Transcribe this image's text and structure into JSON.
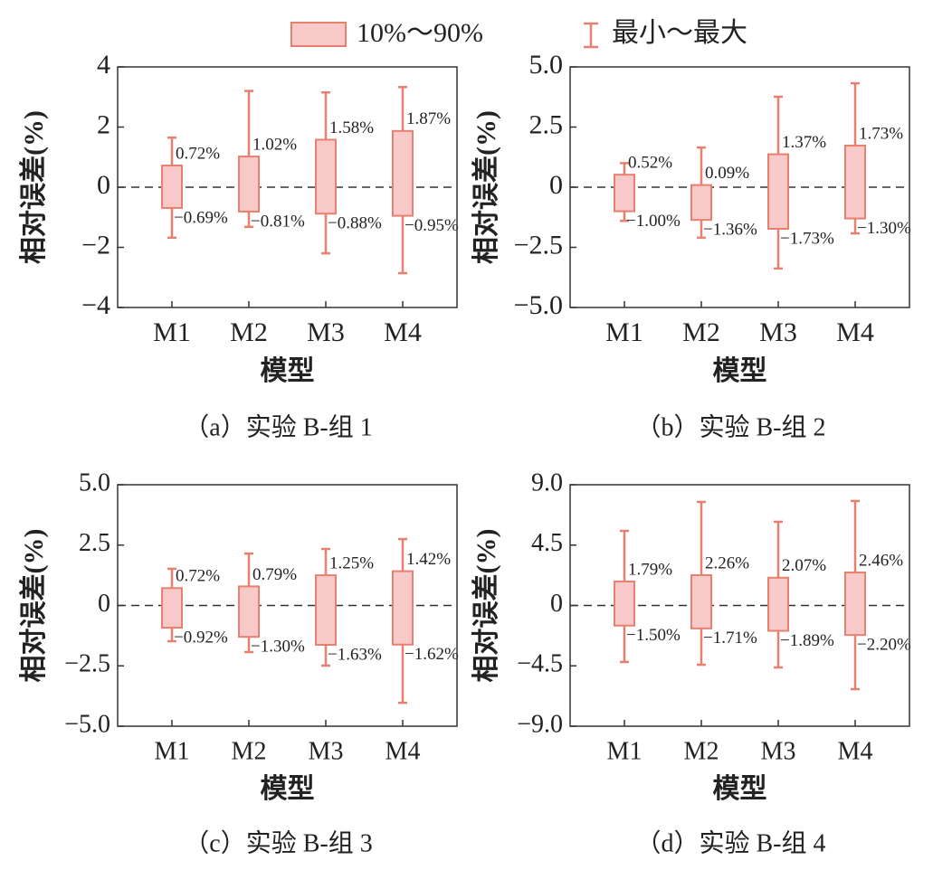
{
  "legend": {
    "box_label": "10%～90%",
    "whisker_label": "最小～最大",
    "box_fill": "#f7c9c9",
    "color": "#e8806f"
  },
  "chart_data": [
    {
      "type": "box",
      "caption": "（a）实验 B-组 1",
      "xlabel": "模型",
      "ylabel": "相对误差(%)",
      "categories": [
        "M1",
        "M2",
        "M3",
        "M4"
      ],
      "q90": {
        "values": [
          0.72,
          1.02,
          1.58,
          1.87
        ],
        "value_labels": [
          "0.72%",
          "1.02%",
          "1.58%",
          "1.87%"
        ]
      },
      "q10": {
        "values": [
          -0.69,
          -0.81,
          -0.88,
          -0.95
        ],
        "value_labels": [
          "−0.69%",
          "−0.81%",
          "−0.88%",
          "−0.95%"
        ]
      },
      "max": [
        1.65,
        3.2,
        3.15,
        3.33
      ],
      "min": [
        -1.68,
        -1.32,
        -2.2,
        -2.86
      ],
      "ylim": [
        -4,
        4
      ],
      "yticks": [
        {
          "value": -4,
          "label": "−4"
        },
        {
          "value": -2,
          "label": "−2"
        },
        0,
        2,
        4
      ],
      "hline": 0
    },
    {
      "type": "box",
      "caption": "（b）实验 B-组 2",
      "xlabel": "模型",
      "ylabel": "相对误差(%)",
      "categories": [
        "M1",
        "M2",
        "M3",
        "M4"
      ],
      "q90": {
        "values": [
          0.52,
          0.09,
          1.37,
          1.73
        ],
        "value_labels": [
          "0.52%",
          "0.09%",
          "1.37%",
          "1.73%"
        ]
      },
      "q10": {
        "values": [
          -1,
          -1.36,
          -1.73,
          -1.3
        ],
        "value_labels": [
          "−1.00%",
          "−1.36%",
          "−1.73%",
          "−1.30%"
        ]
      },
      "max": [
        1.0,
        1.65,
        3.76,
        4.32
      ],
      "min": [
        -1.4,
        -2.1,
        -3.38,
        -1.92
      ],
      "ylim": [
        -5,
        5
      ],
      "yticks": [
        {
          "value": -5,
          "label": "−5.0"
        },
        {
          "value": -2.5,
          "label": "−2.5"
        },
        0,
        2.5,
        {
          "value": 5,
          "label": "5.0"
        }
      ],
      "hline": 0
    },
    {
      "type": "box",
      "caption": "（c）实验 B-组 3",
      "xlabel": "模型",
      "ylabel": "相对误差(%)",
      "categories": [
        "M1",
        "M2",
        "M3",
        "M4"
      ],
      "q90": {
        "values": [
          0.72,
          0.79,
          1.25,
          1.42
        ],
        "value_labels": [
          "0.72%",
          "0.79%",
          "1.25%",
          "1.42%"
        ]
      },
      "q10": {
        "values": [
          -0.92,
          -1.3,
          -1.63,
          -1.62
        ],
        "value_labels": [
          "−0.92%",
          "−1.30%",
          "−1.63%",
          "−1.62%"
        ]
      },
      "max": [
        1.52,
        2.15,
        2.34,
        2.75
      ],
      "min": [
        -1.48,
        -1.93,
        -2.49,
        -4.03
      ],
      "ylim": [
        -5,
        5
      ],
      "yticks": [
        {
          "value": -5,
          "label": "−5.0"
        },
        {
          "value": -2.5,
          "label": "−2.5"
        },
        0,
        2.5,
        {
          "value": 5,
          "label": "5.0"
        }
      ],
      "hline": 0
    },
    {
      "type": "box",
      "caption": "（d）实验 B-组 4",
      "xlabel": "模型",
      "ylabel": "相对误差(%)",
      "categories": [
        "M1",
        "M2",
        "M3",
        "M4"
      ],
      "q90": {
        "values": [
          1.79,
          2.26,
          2.07,
          2.46
        ],
        "value_labels": [
          "1.79%",
          "2.26%",
          "2.07%",
          "2.46%"
        ]
      },
      "q10": {
        "values": [
          -1.5,
          -1.71,
          -1.89,
          -2.2
        ],
        "value_labels": [
          "−1.50%",
          "−1.71%",
          "−1.89%",
          "−2.20%"
        ]
      },
      "max": [
        5.56,
        7.72,
        6.24,
        7.79
      ],
      "min": [
        -4.21,
        -4.42,
        -4.62,
        -6.24
      ],
      "ylim": [
        -9,
        9
      ],
      "yticks": [
        {
          "value": -9,
          "label": "−9.0"
        },
        {
          "value": -4.5,
          "label": "−4.5"
        },
        0,
        4.5,
        {
          "value": 9,
          "label": "9.0"
        }
      ],
      "hline": 0
    }
  ]
}
